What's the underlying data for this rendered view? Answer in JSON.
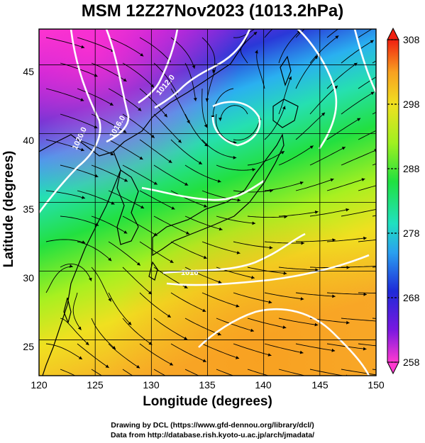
{
  "title": "MSM 12Z27Nov2023 (1013.2hPa)",
  "xlabel": "Longitude (degrees)",
  "ylabel": "Latitude  (degrees)",
  "x_ticks": [
    "120",
    "125",
    "130",
    "135",
    "140",
    "145",
    "150"
  ],
  "y_ticks": [
    "25",
    "30",
    "35",
    "40",
    "45"
  ],
  "colorbar_ticks": [
    "308",
    "298",
    "288",
    "278",
    "268",
    "258"
  ],
  "contour_labels": [
    "1020.0",
    "1016.0",
    "1012.0",
    "1016"
  ],
  "credits": {
    "line1": "Drawing by DCL (https://www.gfd-dennou.org/library/dcl/)",
    "line2": "Data from http://database.rish.kyoto-u.ac.jp/arch/jmadata/"
  },
  "map": {
    "lon_range": [
      120,
      150
    ],
    "lat_range": [
      22.4,
      47.6
    ],
    "colorbar_range": [
      258,
      308
    ],
    "grid_lons": [
      125,
      130,
      135,
      140,
      145
    ],
    "grid_lats": [
      25,
      30,
      35,
      40,
      45
    ]
  },
  "colors": {
    "colormap": [
      "#ff3ad0",
      "#7a18e0",
      "#1e2ad8",
      "#2aa0f0",
      "#20e0c0",
      "#20e040",
      "#a0f020",
      "#f0e020",
      "#f8a020",
      "#f02010"
    ],
    "contour": "#ffffff"
  }
}
